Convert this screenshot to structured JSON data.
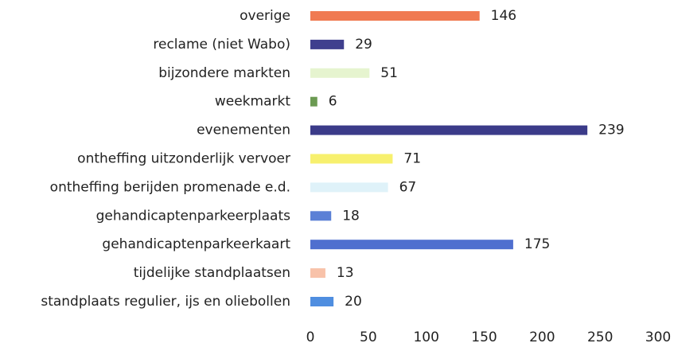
{
  "chart_data": {
    "type": "barh",
    "categories": [
      "overige",
      "reclame (niet Wabo)",
      "bijzondere markten",
      "weekmarkt",
      "evenementen",
      "ontheffing uitzonderlijk vervoer",
      "ontheffing berijden promenade e.d.",
      "gehandicaptenparkeerplaats",
      "gehandicaptenparkeerkaart",
      "tijdelijke standplaatsen",
      "standplaats regulier, ijs en oliebollen"
    ],
    "values": [
      146,
      29,
      51,
      6,
      239,
      71,
      67,
      18,
      175,
      13,
      20
    ],
    "colors": [
      "#f07a52",
      "#3f3f8e",
      "#e6f4cf",
      "#6b9a52",
      "#3b3b89",
      "#f7f06e",
      "#dff2f9",
      "#5b80d6",
      "#4f6fcf",
      "#f8c2a9",
      "#4f8ee0"
    ],
    "xlim": [
      0,
      300
    ],
    "xticks": [
      0,
      50,
      100,
      150,
      200,
      250,
      300
    ],
    "grid": false
  }
}
